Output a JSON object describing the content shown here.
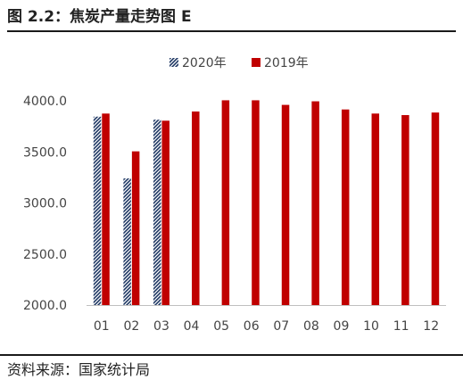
{
  "figure": {
    "title": "图 2.2：焦炭产量走势图 E",
    "source": "资料来源：国家统计局"
  },
  "colors": {
    "series_2019": "#C00000",
    "series_2020": "#1F3864",
    "axis": "#BFBFBF"
  },
  "chart_data": {
    "type": "bar",
    "title": "",
    "xlabel": "",
    "ylabel": "",
    "categories": [
      "01",
      "02",
      "03",
      "04",
      "05",
      "06",
      "07",
      "08",
      "09",
      "10",
      "11",
      "12"
    ],
    "ylim": [
      2000,
      4000
    ],
    "yticks": [
      "4000.0",
      "3500.0",
      "3000.0",
      "2500.0",
      "2000.0"
    ],
    "grid": false,
    "legend_position": "top-center",
    "series": [
      {
        "name": "2020年",
        "pattern": "diagonal-hatch",
        "values": [
          3845,
          3240,
          3815,
          null,
          null,
          null,
          null,
          null,
          null,
          null,
          null,
          null
        ]
      },
      {
        "name": "2019年",
        "pattern": "solid",
        "values": [
          3875,
          3505,
          3805,
          3895,
          4005,
          4005,
          3960,
          3995,
          3915,
          3875,
          3860,
          3885
        ]
      }
    ]
  }
}
